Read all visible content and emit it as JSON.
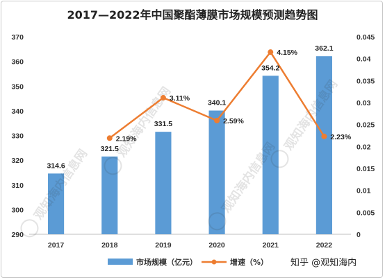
{
  "chart_data": {
    "type": "bar",
    "title": "2017—2022年中国聚酯薄膜市场规模预测趋势图",
    "categories": [
      "2017",
      "2018",
      "2019",
      "2020",
      "2021",
      "2022"
    ],
    "series": [
      {
        "name": "市场规模（亿元）",
        "type": "bar",
        "axis": "left",
        "values": [
          314.6,
          321.5,
          331.5,
          340.1,
          354.2,
          362.1
        ],
        "labels": [
          "314.6",
          "321.5",
          "331.5",
          "340.1",
          "354.2",
          "362.1"
        ],
        "color": "#5b9bd5"
      },
      {
        "name": "增速（%）",
        "type": "line",
        "axis": "right",
        "values": [
          null,
          0.0219,
          0.0311,
          0.0259,
          0.0415,
          0.0223
        ],
        "labels": [
          "",
          "2.19%",
          "3.11%",
          "2.59%",
          "4.15%",
          "2.23%"
        ],
        "color": "#ed7d31"
      }
    ],
    "y_left": {
      "ylim": [
        290,
        370
      ],
      "ticks": [
        "290",
        "300",
        "310",
        "320",
        "330",
        "340",
        "350",
        "360",
        "370"
      ]
    },
    "y_right": {
      "ylim": [
        0,
        0.045
      ],
      "ticks": [
        "0",
        "0.005",
        "0.01",
        "0.015",
        "0.02",
        "0.025",
        "0.03",
        "0.035",
        "0.04",
        "0.045"
      ]
    },
    "grid": false,
    "legend": "bottom"
  },
  "watermark": {
    "text": "知乎 @观知海内",
    "stamp_text": "观知海内信息网"
  }
}
